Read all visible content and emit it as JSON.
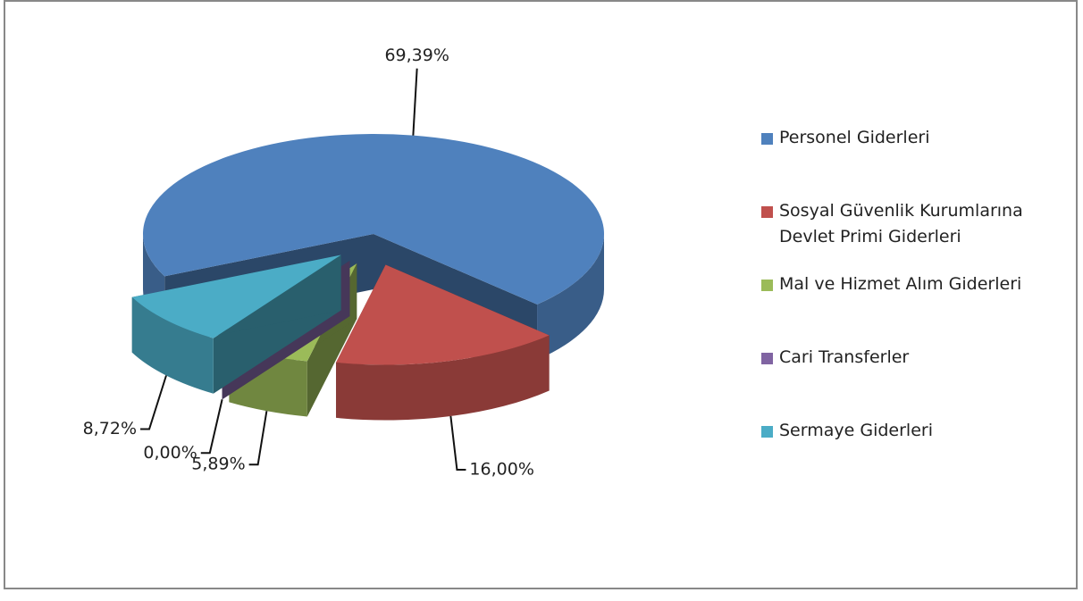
{
  "chart_data": {
    "type": "pie3d",
    "categories": [
      "Personel Giderleri",
      "Sosyal Güvenlik Kurumlarına Devlet Primi Giderleri",
      "Mal ve Hizmet Alım Giderleri",
      "Cari Transferler",
      "Sermaye Giderleri"
    ],
    "values": [
      69.39,
      16.0,
      5.89,
      0.0,
      8.72
    ],
    "value_labels": [
      "69,39%",
      "16,00%",
      "5,89%",
      "0,00%",
      "8,72%"
    ],
    "colors": [
      "#4f81bd",
      "#c0504d",
      "#9bbb59",
      "#8064a2",
      "#4bacc6"
    ],
    "legend": "right"
  }
}
